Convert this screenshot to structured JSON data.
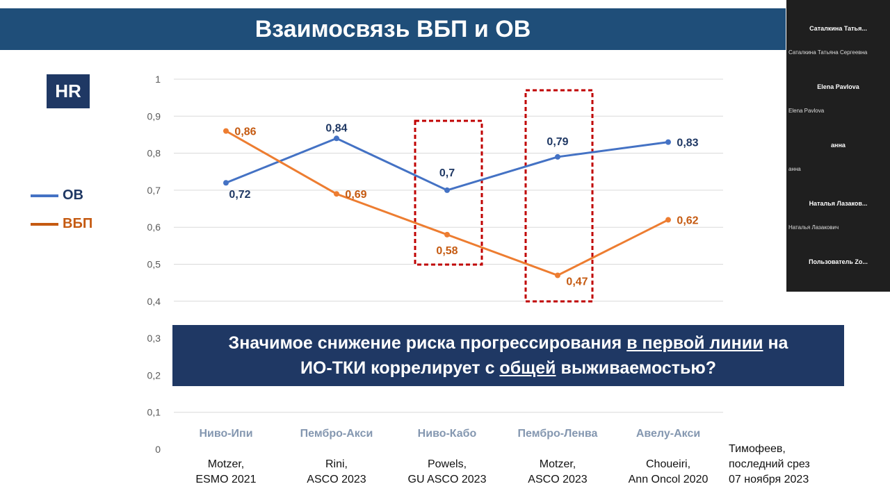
{
  "slide": {
    "title": "Взаимосвязь ВБП и ОВ",
    "hr_label": "HR",
    "banner": {
      "line1_a": "Значимое снижение риска прогрессирования ",
      "line1_u": "в первой линии",
      "line1_b": " на",
      "line2_a": "ИО-ТКИ коррелирует с ",
      "line2_u": "общей",
      "line2_b": " выживаемостью?"
    },
    "sources": [
      "Motzer,\nESMO 2021",
      "Rini,\nASCO 2023",
      "Powels,\nGU ASCO 2023",
      "Motzer,\nASCO 2023",
      "Choueiri,\nAnn Oncol 2020"
    ],
    "note": "Тимофеев,\nпоследний срез\n07 ноября 2023"
  },
  "chart_data": {
    "type": "line",
    "categories": [
      "Ниво-Ипи",
      "Пембро-Акси",
      "Ниво-Кабо",
      "Пембро-Ленва",
      "Авелу-Акси"
    ],
    "ylim": [
      0,
      1
    ],
    "yticks": [
      "0",
      "0,1",
      "0,2",
      "0,3",
      "0,4",
      "0,5",
      "0,6",
      "0,7",
      "0,8",
      "0,9",
      "1"
    ],
    "grid": true,
    "legend_placement": "left",
    "series": [
      {
        "name": "ОВ",
        "color": "#4472c4",
        "label_color": "#1f3864",
        "values": [
          0.72,
          0.84,
          0.7,
          0.79,
          0.83
        ],
        "labels": [
          "0,72",
          "0,84",
          "0,7",
          "0,79",
          "0,83"
        ]
      },
      {
        "name": "ВБП",
        "color": "#ed7d31",
        "label_color": "#c55a11",
        "values": [
          0.86,
          0.69,
          0.58,
          0.47,
          0.62
        ],
        "labels": [
          "0,86",
          "0,69",
          "0,58",
          "0,47",
          "0,62"
        ]
      }
    ],
    "highlighted_categories": [
      "Ниво-Кабо",
      "Пембро-Ленва"
    ],
    "highlight_color": "#c00000"
  },
  "participants": [
    {
      "tile": "Саталкина  Татья...",
      "name": "Саталкина Татьяна Сергеевна"
    },
    {
      "tile": "Elena Pavlova",
      "name": "Elena Pavlova"
    },
    {
      "tile": "анна",
      "name": "анна"
    },
    {
      "tile": "Наталья  Лазаков...",
      "name": "Наталья Лазакович"
    },
    {
      "tile": "Пользователь  Zo...",
      "name": ""
    }
  ]
}
